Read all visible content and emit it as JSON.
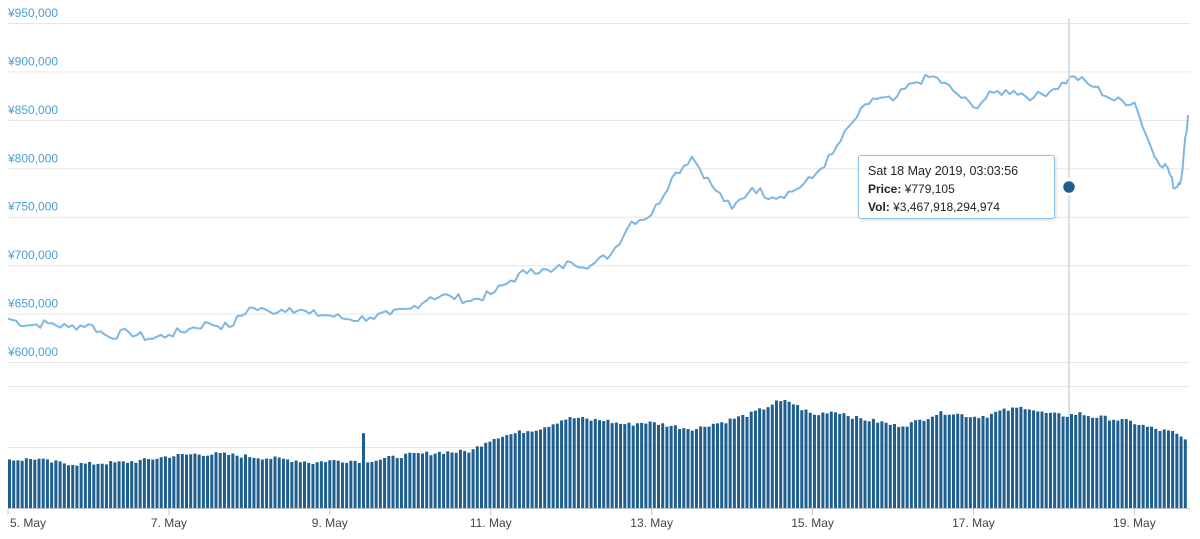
{
  "chart_data": [
    {
      "type": "line",
      "title": "",
      "xlabel": "",
      "ylabel": "",
      "ylim": [
        600000,
        950000
      ],
      "xlim": [
        "2019-05-05",
        "2019-05-19 16:00"
      ],
      "grid": true,
      "yticks": [
        "¥600,000",
        "¥650,000",
        "¥700,000",
        "¥750,000",
        "¥800,000",
        "¥850,000",
        "¥900,000",
        "¥950,000"
      ],
      "series": [
        {
          "color": "#7db7e2",
          "points": [
            [
              "2019-05-05 00:00",
              645000
            ],
            [
              "2019-05-05 06:00",
              638000
            ],
            [
              "2019-05-05 12:00",
              640000
            ],
            [
              "2019-05-05 18:00",
              636000
            ],
            [
              "2019-05-06 00:00",
              639000
            ],
            [
              "2019-05-06 06:00",
              626000
            ],
            [
              "2019-05-06 12:00",
              631000
            ],
            [
              "2019-05-06 18:00",
              624000
            ],
            [
              "2019-05-07 00:00",
              628000
            ],
            [
              "2019-05-07 06:00",
              634000
            ],
            [
              "2019-05-07 12:00",
              640000
            ],
            [
              "2019-05-07 18:00",
              636000
            ],
            [
              "2019-05-08 00:00",
              656000
            ],
            [
              "2019-05-08 06:00",
              652000
            ],
            [
              "2019-05-08 12:00",
              656000
            ],
            [
              "2019-05-08 18:00",
              650000
            ],
            [
              "2019-05-09 00:00",
              648000
            ],
            [
              "2019-05-09 06:00",
              644000
            ],
            [
              "2019-05-09 12:00",
              646000
            ],
            [
              "2019-05-09 18:00",
              649000
            ],
            [
              "2019-05-10 00:00",
              655000
            ],
            [
              "2019-05-10 06:00",
              667000
            ],
            [
              "2019-05-10 12:00",
              668000
            ],
            [
              "2019-05-10 18:00",
              663000
            ],
            [
              "2019-05-11 00:00",
              670000
            ],
            [
              "2019-05-11 06:00",
              684000
            ],
            [
              "2019-05-11 12:00",
              696000
            ],
            [
              "2019-05-11 18:00",
              693000
            ],
            [
              "2019-05-12 00:00",
              703000
            ],
            [
              "2019-05-12 06:00",
              700000
            ],
            [
              "2019-05-12 12:00",
              712000
            ],
            [
              "2019-05-12 18:00",
              745000
            ],
            [
              "2019-05-13 00:00",
              752000
            ],
            [
              "2019-05-13 06:00",
              790000
            ],
            [
              "2019-05-13 12:00",
              812000
            ],
            [
              "2019-05-13 18:00",
              782000
            ],
            [
              "2019-05-14 00:00",
              758000
            ],
            [
              "2019-05-14 06:00",
              780000
            ],
            [
              "2019-05-14 12:00",
              770000
            ],
            [
              "2019-05-14 18:00",
              776000
            ],
            [
              "2019-05-15 00:00",
              790000
            ],
            [
              "2019-05-15 06:00",
              815000
            ],
            [
              "2019-05-15 12:00",
              848000
            ],
            [
              "2019-05-15 18:00",
              872000
            ],
            [
              "2019-05-16 00:00",
              870000
            ],
            [
              "2019-05-16 06:00",
              888000
            ],
            [
              "2019-05-16 12:00",
              895000
            ],
            [
              "2019-05-16 18:00",
              880000
            ],
            [
              "2019-05-17 00:00",
              863000
            ],
            [
              "2019-05-17 06:00",
              878000
            ],
            [
              "2019-05-17 12:00",
              880000
            ],
            [
              "2019-05-17 18:00",
              873000
            ],
            [
              "2019-05-18 00:00",
              882000
            ],
            [
              "2019-05-18 06:00",
              895000
            ],
            [
              "2019-05-18 12:00",
              884000
            ],
            [
              "2019-05-18 18:00",
              870000
            ],
            [
              "2019-05-19 00:00",
              868000
            ],
            [
              "2019-05-19 06:00",
              812000
            ],
            [
              "2019-05-19 10:00",
              800000
            ],
            [
              "2019-05-19 12:00",
              779000
            ],
            [
              "2019-05-19 14:00",
              790000
            ],
            [
              "2019-05-19 16:00",
              855000
            ]
          ]
        }
      ]
    },
    {
      "type": "bar",
      "title": "",
      "xlabel": "",
      "ylabel": "",
      "color": "#1f5f8f",
      "xticks": [
        "5. May",
        "7. May",
        "9. May",
        "11. May",
        "13. May",
        "15. May",
        "17. May",
        "19. May"
      ],
      "series": [
        {
          "values": [
            0.44,
            0.44,
            0.45,
            0.42,
            0.41,
            0.4,
            0.4,
            0.41,
            0.41,
            0.42,
            0.43,
            0.45,
            0.47,
            0.48,
            0.49,
            0.49,
            0.49,
            0.48,
            0.47,
            0.46,
            0.45,
            0.44,
            0.43,
            0.41,
            0.43,
            0.43,
            0.43,
            0.43,
            0.44,
            0.46,
            0.48,
            0.49,
            0.5,
            0.51,
            0.51,
            0.52,
            0.6,
            0.65,
            0.67,
            0.7,
            0.72,
            0.76,
            0.81,
            0.82,
            0.8,
            0.8,
            0.77,
            0.76,
            0.78,
            0.77,
            0.75,
            0.73,
            0.72,
            0.76,
            0.78,
            0.82,
            0.85,
            0.9,
            0.96,
            0.97,
            0.9,
            0.84,
            0.88,
            0.87,
            0.82,
            0.8,
            0.78,
            0.75,
            0.76,
            0.8,
            0.85,
            0.87,
            0.85,
            0.83,
            0.84,
            0.88,
            0.9,
            0.92,
            0.87,
            0.85,
            0.84,
            0.86,
            0.83,
            0.82,
            0.8,
            0.78,
            0.74,
            0.71,
            0.69,
            0.62
          ]
        }
      ]
    }
  ],
  "tooltip": {
    "date": "Sat 18 May 2019, 03:03:56",
    "price_label": "Price:",
    "price_value": "¥779,105",
    "vol_label": "Vol:",
    "vol_value": "¥3,467,918,294,974"
  }
}
